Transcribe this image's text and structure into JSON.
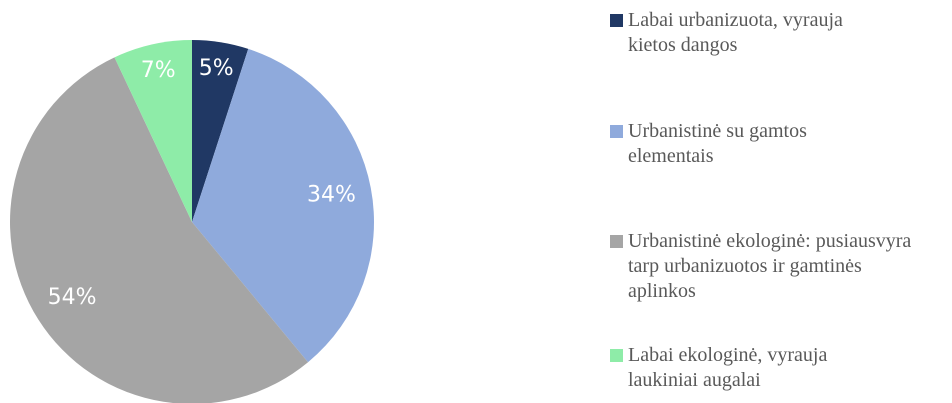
{
  "chart_data": {
    "type": "pie",
    "categories": [
      "Labai urbanizuota, vyrauja kietos dangos",
      "Urbanistinė su gamtos elementais",
      "Urbanistinė ekologinė: pusiausvyra tarp urbanizuotos ir gamtinės aplinkos",
      "Labai ekologinė, vyrauja laukiniai augalai"
    ],
    "values": [
      5,
      34,
      54,
      7
    ],
    "value_labels": [
      "5%",
      "34%",
      "54%",
      "7%"
    ],
    "colors": [
      "#203864",
      "#8faadc",
      "#a5a5a5",
      "#8eeca8"
    ],
    "legend": "right"
  }
}
